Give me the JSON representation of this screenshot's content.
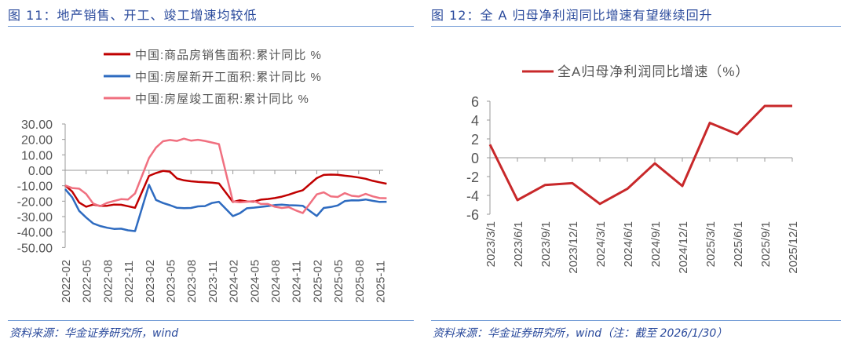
{
  "left": {
    "title": "图 11：地产销售、开工、竣工增速均较低",
    "source": "资料来源：华金证券研究所，wind"
  },
  "right": {
    "title": "图 12：全 A 归母净利润同比增速有望继续回升",
    "source": "资料来源：华金证券研究所，wind（注：截至 2026/1/30）"
  },
  "chart_data": [
    {
      "type": "line",
      "ylim": [
        -50,
        30
      ],
      "yticks": [
        "30.00",
        "20.00",
        "10.00",
        "0.00",
        "-10.00",
        "-20.00",
        "-30.00",
        "-40.00",
        "-50.00"
      ],
      "xtick_labels": [
        "2022-02",
        "2022-05",
        "2022-08",
        "2022-11",
        "2023-02",
        "2023-05",
        "2023-08",
        "2023-11",
        "2024-02",
        "2024-05",
        "2024-08",
        "2024-11",
        "2025-02",
        "2025-05",
        "2025-08",
        "2025-11"
      ],
      "legend_placement": "top",
      "x": [
        "2022-02",
        "2022-03",
        "2022-04",
        "2022-05",
        "2022-06",
        "2022-07",
        "2022-08",
        "2022-09",
        "2022-10",
        "2022-11",
        "2022-12",
        "2023-02",
        "2023-03",
        "2023-04",
        "2023-05",
        "2023-06",
        "2023-07",
        "2023-08",
        "2023-09",
        "2023-10",
        "2023-11",
        "2023-12",
        "2024-02",
        "2024-03",
        "2024-04",
        "2024-05",
        "2024-06",
        "2024-07",
        "2024-08",
        "2024-09",
        "2024-10",
        "2024-11",
        "2024-12",
        "2025-02",
        "2025-03",
        "2025-04",
        "2025-05",
        "2025-06",
        "2025-07",
        "2025-08",
        "2025-09",
        "2025-10",
        "2025-11",
        "2025-12"
      ],
      "series": [
        {
          "name": "中国:商品房销售面积:累计同比 %",
          "color": "#c00000",
          "values": [
            -9.8,
            -13.8,
            -20.9,
            -23.6,
            -22.2,
            -23.1,
            -23.0,
            -22.2,
            -22.3,
            -23.3,
            -24.3,
            -3.6,
            -1.8,
            -0.4,
            -0.9,
            -5.3,
            -6.5,
            -7.1,
            -7.5,
            -7.8,
            -8.0,
            -8.5,
            -20.5,
            -19.4,
            -20.2,
            -20.3,
            -19.0,
            -18.6,
            -18.0,
            -17.1,
            -15.8,
            -14.3,
            -12.9,
            -5.1,
            -3.0,
            -2.8,
            -2.9,
            -3.5,
            -4.0,
            -4.7,
            -5.5,
            -6.8,
            -7.8,
            -8.7
          ]
        },
        {
          "name": "中国:房屋新开工面积:累计同比 %",
          "color": "#2e6bc0",
          "values": [
            -12.2,
            -17.5,
            -26.3,
            -30.6,
            -34.4,
            -36.1,
            -37.2,
            -38.0,
            -37.8,
            -38.9,
            -39.4,
            -9.4,
            -19.2,
            -21.2,
            -22.6,
            -24.3,
            -24.5,
            -24.4,
            -23.4,
            -23.2,
            -21.2,
            -20.4,
            -29.7,
            -27.8,
            -24.6,
            -24.2,
            -23.7,
            -23.2,
            -22.5,
            -22.2,
            -22.6,
            -22.8,
            -23.0,
            -29.6,
            -24.4,
            -23.8,
            -22.8,
            -20.0,
            -19.4,
            -19.5,
            -18.9,
            -19.8,
            -20.5,
            -20.4
          ]
        },
        {
          "name": "中国:房屋竣工面积:累计同比 %",
          "color": "#f07080",
          "values": [
            -9.8,
            -11.5,
            -11.9,
            -15.3,
            -21.5,
            -23.3,
            -21.1,
            -19.9,
            -18.7,
            -18.9,
            -15.0,
            8.0,
            14.7,
            18.8,
            19.6,
            19.0,
            20.5,
            19.2,
            19.8,
            19.0,
            18.0,
            17.0,
            -20.2,
            -20.7,
            -20.4,
            -19.9,
            -21.8,
            -21.8,
            -23.6,
            -24.4,
            -23.9,
            -26.0,
            -27.7,
            -15.6,
            -14.3,
            -16.9,
            -17.3,
            -14.8,
            -16.5,
            -17.0,
            -15.3,
            -16.9,
            -18.0,
            -18.1
          ]
        }
      ]
    },
    {
      "type": "line",
      "ylim": [
        -6,
        6
      ],
      "yticks": [
        "6",
        "4",
        "2",
        "0",
        "-2",
        "-4",
        "-6"
      ],
      "legend_placement": "top",
      "categories": [
        "2023/3/1",
        "2023/6/1",
        "2023/9/1",
        "2023/12/1",
        "2024/3/1",
        "2024/6/1",
        "2024/9/1",
        "2024/12/1",
        "2025/3/1",
        "2025/6/1",
        "2025/9/1",
        "2025/12/1"
      ],
      "series": [
        {
          "name": "全A归母净利润同比增速（%）",
          "color": "#c8282a",
          "values": [
            1.4,
            -4.5,
            -2.9,
            -2.7,
            -4.9,
            -3.3,
            -0.6,
            -3.0,
            3.7,
            2.5,
            5.5,
            5.5
          ]
        }
      ]
    }
  ]
}
